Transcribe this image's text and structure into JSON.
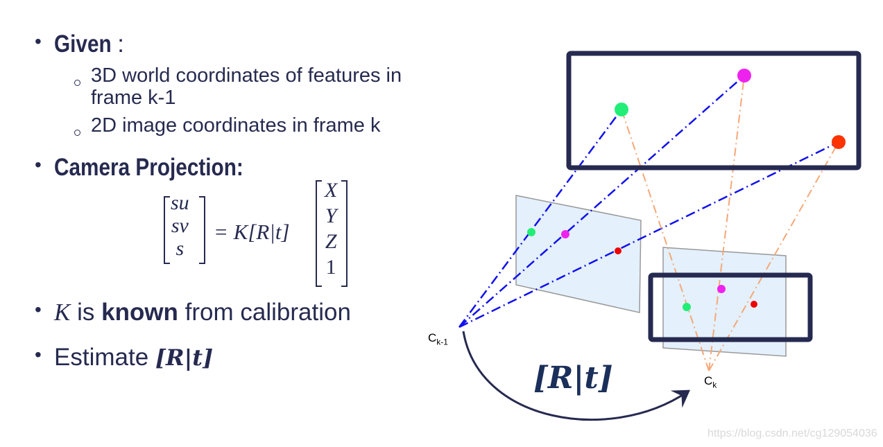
{
  "bullets": {
    "given": {
      "label": "Given",
      "suffix": ":"
    },
    "given_items": [
      "3D world coordinates of features in",
      "frame k-1",
      "2D image coordinates in frame k"
    ],
    "projection": {
      "label": "Camera Projection:"
    },
    "equation": {
      "lhs": [
        "su",
        "sv",
        "s"
      ],
      "middle": "= K[R|t]",
      "rhs": [
        "X",
        "Y",
        "Z",
        "1"
      ]
    },
    "known": {
      "k": "K",
      "is": "is",
      "known": "known",
      "rest": "from calibration"
    },
    "estimate": {
      "label": "Estimate",
      "rt": "[R|t]"
    }
  },
  "diagram": {
    "camera_prev_label": "C",
    "camera_prev_sub": "k-1",
    "camera_curr_label": "C",
    "camera_curr_sub": "k",
    "transform_label": "[R|t]",
    "colors": {
      "frame": "#262a50",
      "green": "#22ee77",
      "magenta": "#ee22ee",
      "red": "#ff3300",
      "ray_prev": "#1111ee",
      "ray_curr": "#f4a878",
      "plane": "#e4f0fc"
    }
  },
  "watermark": "https://blog.csdn.net/cg129054036"
}
